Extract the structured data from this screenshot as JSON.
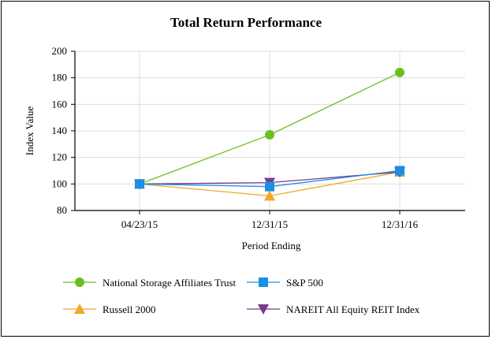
{
  "chart_data": {
    "type": "line",
    "title": "Total Return Performance",
    "xlabel": "Period Ending",
    "ylabel": "Index Value",
    "categories": [
      "04/23/15",
      "12/31/15",
      "12/31/16"
    ],
    "ylim": [
      80,
      200
    ],
    "yticks": [
      80,
      100,
      120,
      140,
      160,
      180,
      200
    ],
    "grid": true,
    "legend_position": "bottom",
    "series": [
      {
        "name": "National Storage Affiliates Trust",
        "values": [
          100,
          137,
          184
        ],
        "color": "#6abf1f",
        "marker": "circle"
      },
      {
        "name": "S&P 500",
        "values": [
          100,
          98,
          110
        ],
        "color": "#1a8fe3",
        "marker": "square"
      },
      {
        "name": "Russell 2000",
        "values": [
          100,
          91,
          109
        ],
        "color": "#f0a82a",
        "marker": "triangle-up"
      },
      {
        "name": "NAREIT All Equity REIT Index",
        "values": [
          100,
          101,
          109
        ],
        "color": "#7a3a8c",
        "marker": "triangle-down"
      }
    ]
  }
}
